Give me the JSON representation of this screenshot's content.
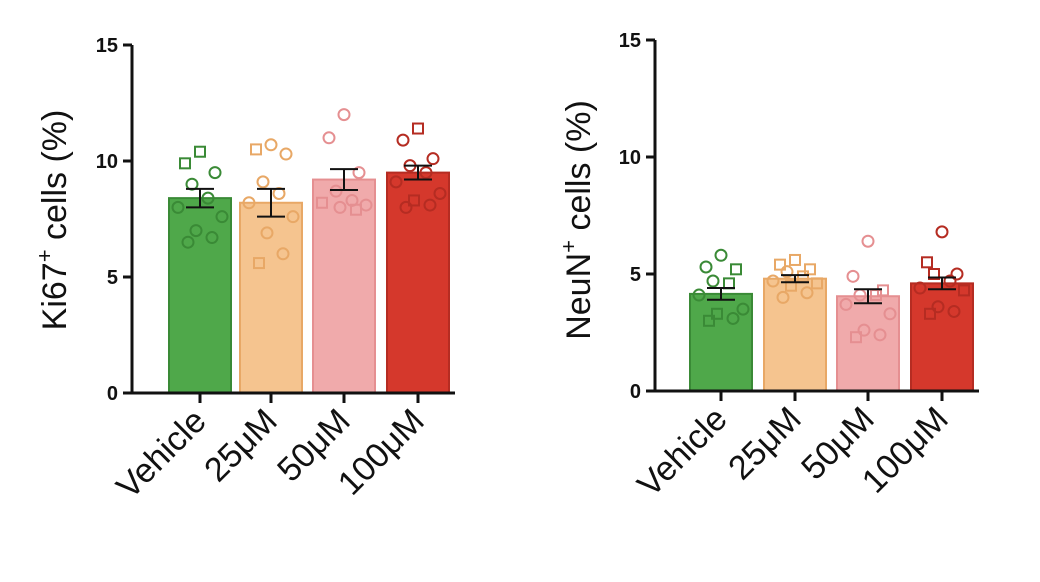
{
  "chart_data": [
    {
      "type": "bar",
      "title": "",
      "ylabel": "Ki67",
      "ylabel_sup": "+",
      "ylabel_rest": " cells (%)",
      "xlabel": "",
      "ylim": [
        0,
        15
      ],
      "yticks": [
        0,
        5,
        10,
        15
      ],
      "categories": [
        "Vehicle",
        "25μM",
        "50μM",
        "100μM"
      ],
      "colors": [
        "#4fa84a",
        "#f5c48f",
        "#f0aaab",
        "#d5382c"
      ],
      "edge_colors": [
        "#3a8a36",
        "#e8a866",
        "#e58f91",
        "#b52c22"
      ],
      "values": [
        8.4,
        8.2,
        9.2,
        9.5
      ],
      "errors": [
        0.4,
        0.6,
        0.45,
        0.3
      ],
      "points": [
        {
          "circles": [
            9.5,
            9.0,
            8.4,
            8.0,
            7.6,
            7.0,
            6.7,
            6.5
          ],
          "squares": [
            10.4,
            9.9
          ]
        },
        {
          "circles": [
            10.7,
            10.3,
            9.1,
            8.6,
            8.2,
            7.6,
            6.9,
            6.0
          ],
          "squares": [
            10.5,
            5.6
          ]
        },
        {
          "circles": [
            12.0,
            11.0,
            9.5,
            8.7,
            8.3,
            8.1,
            8.0
          ],
          "squares": [
            8.2,
            7.9
          ]
        },
        {
          "circles": [
            10.9,
            10.1,
            9.8,
            9.5,
            9.1,
            8.6,
            8.1,
            8.0
          ],
          "squares": [
            11.4,
            8.3
          ]
        }
      ]
    },
    {
      "type": "bar",
      "title": "",
      "ylabel": "NeuN",
      "ylabel_sup": "+",
      "ylabel_rest": " cells (%)",
      "xlabel": "",
      "ylim": [
        0,
        15
      ],
      "yticks": [
        0,
        5,
        10,
        15
      ],
      "categories": [
        "Vehicle",
        "25μM",
        "50μM",
        "100μM"
      ],
      "colors": [
        "#4fa84a",
        "#f5c48f",
        "#f0aaab",
        "#d5382c"
      ],
      "edge_colors": [
        "#3a8a36",
        "#e8a866",
        "#e58f91",
        "#b52c22"
      ],
      "values": [
        4.15,
        4.8,
        4.05,
        4.6
      ],
      "errors": [
        0.25,
        0.15,
        0.3,
        0.25
      ],
      "points": [
        {
          "circles": [
            5.8,
            5.3,
            4.7,
            4.1,
            3.5,
            3.1
          ],
          "squares": [
            5.2,
            4.6,
            3.3,
            3.0
          ]
        },
        {
          "circles": [
            5.1,
            4.7,
            4.2,
            4.0
          ],
          "squares": [
            5.6,
            5.4,
            5.2,
            4.9,
            4.6,
            4.5
          ]
        },
        {
          "circles": [
            6.4,
            4.9,
            4.1,
            3.7,
            3.3,
            2.6,
            2.4
          ],
          "squares": [
            4.3,
            4.1,
            2.3
          ]
        },
        {
          "circles": [
            6.8,
            5.0,
            4.7,
            4.4,
            3.6,
            3.4
          ],
          "squares": [
            5.5,
            5.0,
            4.3,
            3.3
          ]
        }
      ]
    }
  ]
}
